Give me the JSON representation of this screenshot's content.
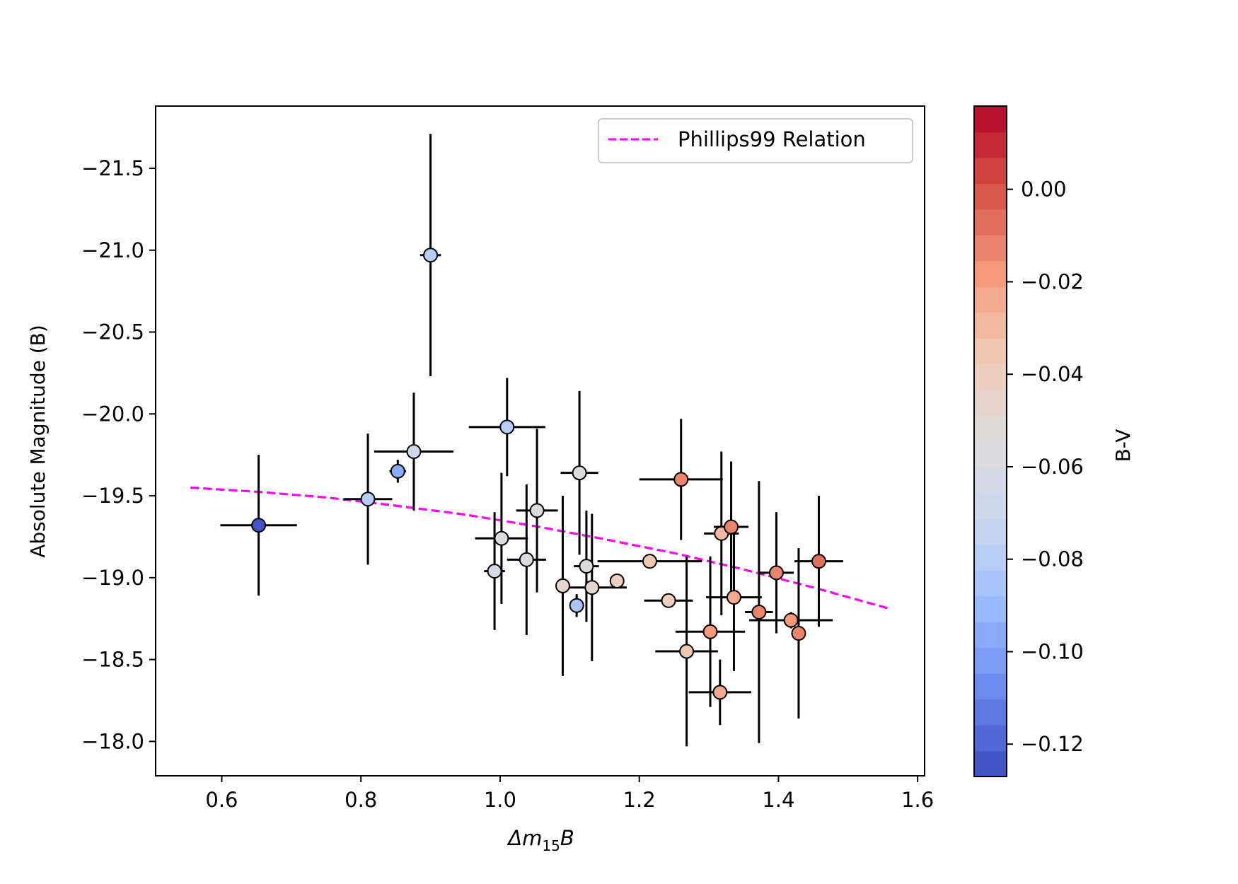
{
  "chart_data": {
    "type": "scatter",
    "title": "",
    "xlabel_prefix": "Δm",
    "xlabel_sub": "15",
    "xlabel_suffix": "B",
    "ylabel": "Absolute Magnitude (B)",
    "xlim": [
      0.505,
      1.61
    ],
    "ylim": [
      -17.79,
      -21.88
    ],
    "y_inverted": true,
    "grid": false,
    "x_ticks": [
      0.6,
      0.8,
      1.0,
      1.2,
      1.4,
      1.6
    ],
    "x_tick_labels": [
      "0.6",
      "0.8",
      "1.0",
      "1.2",
      "1.4",
      "1.6"
    ],
    "y_ticks": [
      -21.5,
      -21.0,
      -20.5,
      -20.0,
      -19.5,
      -19.0,
      -18.5,
      -18.0
    ],
    "y_tick_labels": [
      "−21.5",
      "−21.0",
      "−20.5",
      "−20.0",
      "−19.5",
      "−19.0",
      "−18.5",
      "−18.0"
    ],
    "legend": {
      "position": "upper right",
      "label": "Phillips99 Relation",
      "color": "#ff00ff",
      "style": "dashed"
    },
    "relation_curve": {
      "name": "Phillips99 Relation",
      "color": "#ff00ff",
      "x": [
        0.555,
        0.65,
        0.75,
        0.85,
        0.95,
        1.05,
        1.15,
        1.25,
        1.35,
        1.45,
        1.56
      ],
      "y": [
        -19.55,
        -19.525,
        -19.49,
        -19.44,
        -19.385,
        -19.315,
        -19.235,
        -19.15,
        -19.05,
        -18.94,
        -18.81
      ]
    },
    "series": [
      {
        "name": "",
        "points": [
          {
            "x": 0.653,
            "y": -19.32,
            "xerr": 0.055,
            "yerr": 0.43,
            "bv": -0.124
          },
          {
            "x": 0.81,
            "y": -19.48,
            "xerr": 0.035,
            "yerr": 0.4,
            "bv": -0.08
          },
          {
            "x": 0.853,
            "y": -19.65,
            "xerr": 0.012,
            "yerr": 0.07,
            "bv": -0.095
          },
          {
            "x": 0.876,
            "y": -19.77,
            "xerr": 0.057,
            "yerr": 0.36,
            "bv": -0.07
          },
          {
            "x": 0.9,
            "y": -20.97,
            "xerr": 0.015,
            "yerr": 0.74,
            "bv": -0.082
          },
          {
            "x": 0.992,
            "y": -19.04,
            "xerr": 0.015,
            "yerr": 0.36,
            "bv": -0.065
          },
          {
            "x": 1.002,
            "y": -19.24,
            "xerr": 0.038,
            "yerr": 0.4,
            "bv": -0.06
          },
          {
            "x": 1.01,
            "y": -19.92,
            "xerr": 0.055,
            "yerr": 0.3,
            "bv": -0.078
          },
          {
            "x": 1.038,
            "y": -19.11,
            "xerr": 0.028,
            "yerr": 0.46,
            "bv": -0.06
          },
          {
            "x": 1.053,
            "y": -19.41,
            "xerr": 0.03,
            "yerr": 0.5,
            "bv": -0.055
          },
          {
            "x": 1.09,
            "y": -18.95,
            "xerr": 0.01,
            "yerr": 0.55,
            "bv": -0.045
          },
          {
            "x": 1.11,
            "y": -18.83,
            "xerr": 0.01,
            "yerr": 0.07,
            "bv": -0.085
          },
          {
            "x": 1.114,
            "y": -19.64,
            "xerr": 0.027,
            "yerr": 0.5,
            "bv": -0.055
          },
          {
            "x": 1.124,
            "y": -19.07,
            "xerr": 0.018,
            "yerr": 0.34,
            "bv": -0.052
          },
          {
            "x": 1.132,
            "y": -18.94,
            "xerr": 0.05,
            "yerr": 0.45,
            "bv": -0.048
          },
          {
            "x": 1.168,
            "y": -18.98,
            "xerr": 0.01,
            "yerr": 0.02,
            "bv": -0.04
          },
          {
            "x": 1.215,
            "y": -19.1,
            "xerr": 0.075,
            "yerr": 0.02,
            "bv": -0.035
          },
          {
            "x": 1.242,
            "y": -18.86,
            "xerr": 0.035,
            "yerr": 0.02,
            "bv": -0.038
          },
          {
            "x": 1.26,
            "y": -19.6,
            "xerr": 0.06,
            "yerr": 0.37,
            "bv": -0.01
          },
          {
            "x": 1.268,
            "y": -18.55,
            "xerr": 0.045,
            "yerr": 0.58,
            "bv": -0.035
          },
          {
            "x": 1.302,
            "y": -18.67,
            "xerr": 0.05,
            "yerr": 0.46,
            "bv": -0.02
          },
          {
            "x": 1.316,
            "y": -18.3,
            "xerr": 0.045,
            "yerr": 0.2,
            "bv": -0.025
          },
          {
            "x": 1.318,
            "y": -19.27,
            "xerr": 0.025,
            "yerr": 0.5,
            "bv": -0.03
          },
          {
            "x": 1.332,
            "y": -19.31,
            "xerr": 0.025,
            "yerr": 0.4,
            "bv": -0.015
          },
          {
            "x": 1.336,
            "y": -18.88,
            "xerr": 0.04,
            "yerr": 0.45,
            "bv": -0.025
          },
          {
            "x": 1.372,
            "y": -18.79,
            "xerr": 0.02,
            "yerr": 0.8,
            "bv": -0.015
          },
          {
            "x": 1.397,
            "y": -19.03,
            "xerr": 0.025,
            "yerr": 0.37,
            "bv": -0.01
          },
          {
            "x": 1.418,
            "y": -18.74,
            "xerr": 0.06,
            "yerr": 0.05,
            "bv": -0.02
          },
          {
            "x": 1.429,
            "y": -18.66,
            "xerr": 0.01,
            "yerr": 0.52,
            "bv": -0.012
          },
          {
            "x": 1.458,
            "y": -19.1,
            "xerr": 0.035,
            "yerr": 0.4,
            "bv": -0.005
          }
        ]
      }
    ],
    "colorbar": {
      "label": "B-V",
      "range": [
        -0.127,
        0.018
      ],
      "ticks": [
        0.0,
        -0.02,
        -0.04,
        -0.06,
        -0.08,
        -0.1,
        -0.12
      ],
      "tick_labels": [
        "0.00",
        "−0.02",
        "−0.04",
        "−0.06",
        "−0.08",
        "−0.10",
        "−0.12"
      ],
      "levels": 26,
      "colormap": "coolwarm",
      "colormap_stops": [
        "#3b4cc0",
        "#6788ee",
        "#9abbff",
        "#c9d7f0",
        "#dddddd",
        "#f2cbb7",
        "#f49a7b",
        "#d75445",
        "#b40426"
      ]
    }
  }
}
